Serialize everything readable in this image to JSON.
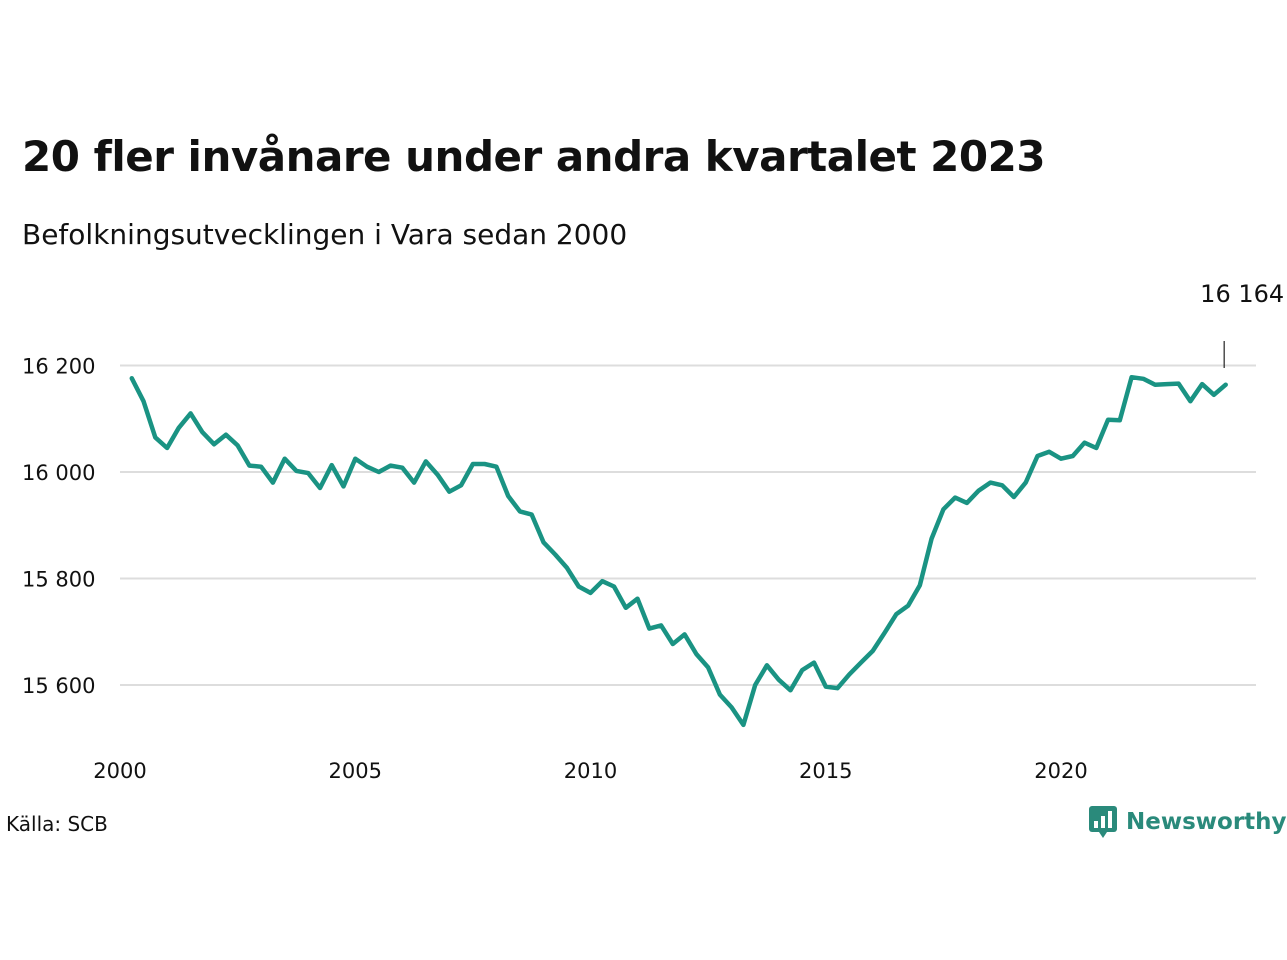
{
  "title": "20 fler invånare under andra kvartalet 2023",
  "subtitle": "Befolkningsutvecklingen i Vara sedan 2000",
  "source": "Källa: SCB",
  "brand": {
    "name": "Newsworthy",
    "icon": "newsworthy-logo-icon",
    "color": "#2a8a7b"
  },
  "colors": {
    "line": "#1a9383",
    "grid": "#dddddd",
    "text": "#111111"
  },
  "chart_data": {
    "type": "line",
    "title": "20 fler invånare under andra kvartalet 2023",
    "subtitle": "Befolkningsutvecklingen i Vara sedan 2000",
    "ylim": [
      15480,
      16270
    ],
    "xlim": [
      2000,
      2024.2
    ],
    "yticks": [
      16200,
      16000,
      15800,
      15600
    ],
    "ytick_labels": [
      "16 200",
      "16 000",
      "15 800",
      "15 600"
    ],
    "xticks": [
      2000,
      2005,
      2010,
      2015,
      2020
    ],
    "xtick_labels": [
      "2000",
      "2005",
      "2010",
      "2015",
      "2020"
    ],
    "grid": "horizontal",
    "annotation": {
      "x": 2023.5,
      "y": 16164,
      "label": "16 164"
    },
    "series": [
      {
        "x": [
          2000.25,
          2000.5,
          2000.75,
          2001,
          2001.25,
          2001.5,
          2001.75,
          2002,
          2002.25,
          2002.5,
          2002.75,
          2003,
          2003.25,
          2003.5,
          2003.75,
          2004,
          2004.25,
          2004.5,
          2004.75,
          2005,
          2005.25,
          2005.5,
          2005.75,
          2006,
          2006.25,
          2006.5,
          2006.75,
          2007,
          2007.25,
          2007.5,
          2007.75,
          2008,
          2008.25,
          2008.5,
          2008.75,
          2009,
          2009.25,
          2009.5,
          2009.75,
          2010,
          2010.25,
          2010.5,
          2010.75,
          2011,
          2011.25,
          2011.5,
          2011.75,
          2012,
          2012.25,
          2012.5,
          2012.75,
          2013,
          2013.25,
          2013.5,
          2013.75,
          2014,
          2014.25,
          2014.5,
          2014.75,
          2015,
          2015.25,
          2015.5,
          2015.75,
          2016,
          2016.25,
          2016.5,
          2016.75,
          2017,
          2017.25,
          2017.5,
          2017.75,
          2018,
          2018.25,
          2018.5,
          2018.75,
          2019,
          2019.25,
          2019.5,
          2019.75,
          2020,
          2020.25,
          2020.5,
          2020.75,
          2021,
          2021.25,
          2021.5,
          2021.75,
          2022,
          2022.25,
          2022.5,
          2022.75,
          2023,
          2023.25,
          2023.5
        ],
        "y": [
          16176,
          16133,
          16065,
          16045,
          16083,
          16110,
          16075,
          16052,
          16070,
          16050,
          16012,
          16010,
          15980,
          16025,
          16002,
          15998,
          15970,
          16013,
          15973,
          16025,
          16010,
          16000,
          16012,
          16008,
          15980,
          16020,
          15995,
          15963,
          15975,
          16015,
          16015,
          16010,
          15955,
          15926,
          15920,
          15868,
          15845,
          15820,
          15785,
          15773,
          15795,
          15785,
          15745,
          15762,
          15706,
          15712,
          15677,
          15695,
          15658,
          15633,
          15582,
          15558,
          15525,
          15600,
          15637,
          15610,
          15590,
          15628,
          15642,
          15597,
          15594,
          15620,
          15642,
          15664,
          15698,
          15733,
          15749,
          15787,
          15875,
          15930,
          15952,
          15942,
          15965,
          15980,
          15975,
          15953,
          15980,
          16030,
          16038,
          16025,
          16030,
          16055,
          16045,
          16098,
          16097,
          16178,
          16175,
          16164,
          16165,
          16166,
          16133,
          16165,
          16145,
          16164
        ]
      }
    ]
  }
}
